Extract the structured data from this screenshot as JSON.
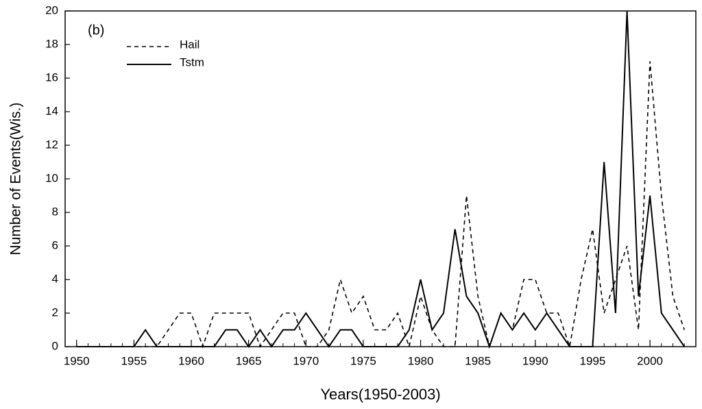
{
  "chart_data": {
    "type": "line",
    "annotation": "(b)",
    "xlabel": "Years(1950-2003)",
    "ylabel": "Number of Events(Wis.)",
    "x": [
      1950,
      1951,
      1952,
      1953,
      1954,
      1955,
      1956,
      1957,
      1958,
      1959,
      1960,
      1961,
      1962,
      1963,
      1964,
      1965,
      1966,
      1967,
      1968,
      1969,
      1970,
      1971,
      1972,
      1973,
      1974,
      1975,
      1976,
      1977,
      1978,
      1979,
      1980,
      1981,
      1982,
      1983,
      1984,
      1985,
      1986,
      1987,
      1988,
      1989,
      1990,
      1991,
      1992,
      1993,
      1994,
      1995,
      1996,
      1997,
      1998,
      1999,
      2000,
      2001,
      2002,
      2003
    ],
    "series": [
      {
        "name": "Hail",
        "color": "#000000",
        "dash": "6,5",
        "values": [
          0,
          0,
          0,
          0,
          0,
          0,
          0,
          0,
          1,
          2,
          2,
          0,
          2,
          2,
          2,
          2,
          0,
          1,
          2,
          2,
          0,
          0,
          1,
          4,
          2,
          3,
          1,
          1,
          2,
          0,
          3,
          1,
          0,
          0,
          9,
          3,
          0,
          2,
          1,
          4,
          4,
          2,
          2,
          0,
          4,
          7,
          2,
          4,
          6,
          1,
          17,
          9,
          3,
          1
        ]
      },
      {
        "name": "Tstm",
        "color": "#000000",
        "dash": "none",
        "values": [
          0,
          0,
          0,
          0,
          0,
          0,
          1,
          0,
          0,
          0,
          0,
          0,
          0,
          1,
          1,
          0,
          1,
          0,
          1,
          1,
          2,
          1,
          0,
          1,
          1,
          0,
          0,
          0,
          0,
          1,
          4,
          1,
          2,
          7,
          3,
          2,
          0,
          2,
          1,
          2,
          1,
          2,
          1,
          0,
          0,
          0,
          11,
          2,
          20,
          3,
          9,
          2,
          1,
          0
        ]
      }
    ],
    "xlim": [
      1949,
      2004
    ],
    "ylim": [
      0,
      20
    ],
    "xticks": [
      1950,
      1955,
      1960,
      1965,
      1970,
      1975,
      1980,
      1985,
      1990,
      1995,
      2000
    ],
    "yticks": [
      0,
      2,
      4,
      6,
      8,
      10,
      12,
      14,
      16,
      18,
      20
    ],
    "grid": false
  }
}
